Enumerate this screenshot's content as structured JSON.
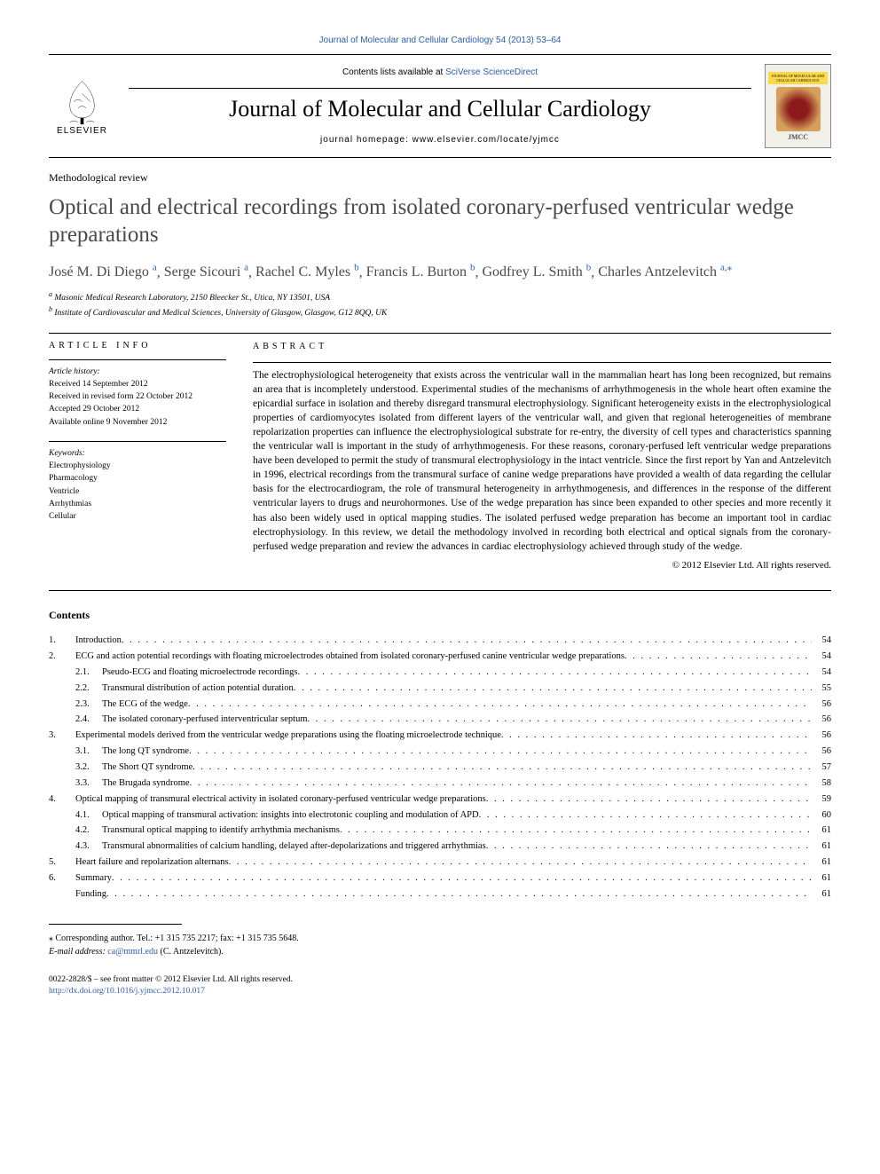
{
  "top_link": "Journal of Molecular and Cellular Cardiology 54 (2013) 53–64",
  "header": {
    "publisher": "ELSEVIER",
    "contents_prefix": "Contents lists available at ",
    "contents_link": "SciVerse ScienceDirect",
    "journal_name": "Journal of Molecular and Cellular Cardiology",
    "homepage_label": "journal homepage: ",
    "homepage_url": "www.elsevier.com/locate/yjmcc",
    "cover_top": "JOURNAL OF MOLECULAR AND CELLULAR CARDIOLOGY",
    "cover_tag": "JMCC"
  },
  "article_type": "Methodological review",
  "title": "Optical and electrical recordings from isolated coronary-perfused ventricular wedge preparations",
  "authors_html": [
    {
      "name": "José M. Di Diego",
      "aff": "a",
      "sep": ", "
    },
    {
      "name": "Serge Sicouri",
      "aff": "a",
      "sep": ", "
    },
    {
      "name": "Rachel C. Myles",
      "aff": "b",
      "sep": ", "
    },
    {
      "name": "Francis L. Burton",
      "aff": "b",
      "sep": ", "
    },
    {
      "name": "Godfrey L. Smith",
      "aff": "b",
      "sep": ", "
    },
    {
      "name": "Charles Antzelevitch",
      "aff": "a,",
      "sep": "",
      "corr": true
    }
  ],
  "affiliations": [
    {
      "key": "a",
      "text": "Masonic Medical Research Laboratory, 2150 Bleecker St., Utica, NY 13501, USA"
    },
    {
      "key": "b",
      "text": "Institute of Cardiovascular and Medical Sciences, University of Glasgow, Glasgow, G12 8QQ, UK"
    }
  ],
  "article_info": {
    "heading": "article info",
    "history_label": "Article history:",
    "history": [
      "Received 14 September 2012",
      "Received in revised form 22 October 2012",
      "Accepted 29 October 2012",
      "Available online 9 November 2012"
    ],
    "keywords_label": "Keywords:",
    "keywords": [
      "Electrophysiology",
      "Pharmacology",
      "Ventricle",
      "Arrhythmias",
      "Cellular"
    ]
  },
  "abstract": {
    "heading": "abstract",
    "text": "The electrophysiological heterogeneity that exists across the ventricular wall in the mammalian heart has long been recognized, but remains an area that is incompletely understood. Experimental studies of the mechanisms of arrhythmogenesis in the whole heart often examine the epicardial surface in isolation and thereby disregard transmural electrophysiology. Significant heterogeneity exists in the electrophysiological properties of cardiomyocytes isolated from different layers of the ventricular wall, and given that regional heterogeneities of membrane repolarization properties can influence the electrophysiological substrate for re-entry, the diversity of cell types and characteristics spanning the ventricular wall is important in the study of arrhythmogenesis. For these reasons, coronary-perfused left ventricular wedge preparations have been developed to permit the study of transmural electrophysiology in the intact ventricle. Since the first report by Yan and Antzelevitch in 1996, electrical recordings from the transmural surface of canine wedge preparations have provided a wealth of data regarding the cellular basis for the electrocardiogram, the role of transmural heterogeneity in arrhythmogenesis, and differences in the response of the different ventricular layers to drugs and neurohormones. Use of the wedge preparation has since been expanded to other species and more recently it has also been widely used in optical mapping studies. The isolated perfused wedge preparation has become an important tool in cardiac electrophysiology. In this review, we detail the methodology involved in recording both electrical and optical signals from the coronary-perfused wedge preparation and review the advances in cardiac electrophysiology achieved through study of the wedge.",
    "copyright": "© 2012 Elsevier Ltd. All rights reserved."
  },
  "contents_heading": "Contents",
  "toc": [
    {
      "num": "1.",
      "text": "Introduction",
      "page": "54",
      "sub": false
    },
    {
      "num": "2.",
      "text": "ECG and action potential recordings with floating microelectrodes obtained from isolated coronary-perfused canine ventricular wedge preparations",
      "page": "54",
      "sub": false
    },
    {
      "num": "2.1.",
      "text": "Pseudo-ECG and floating microelectrode recordings",
      "page": "54",
      "sub": true
    },
    {
      "num": "2.2.",
      "text": "Transmural distribution of action potential duration",
      "page": "55",
      "sub": true
    },
    {
      "num": "2.3.",
      "text": "The ECG of the wedge",
      "page": "56",
      "sub": true
    },
    {
      "num": "2.4.",
      "text": "The isolated coronary-perfused interventricular septum",
      "page": "56",
      "sub": true
    },
    {
      "num": "3.",
      "text": "Experimental models derived from the ventricular wedge preparations using the floating microelectrode technique",
      "page": "56",
      "sub": false
    },
    {
      "num": "3.1.",
      "text": "The long QT syndrome",
      "page": "56",
      "sub": true
    },
    {
      "num": "3.2.",
      "text": "The Short QT syndrome",
      "page": "57",
      "sub": true
    },
    {
      "num": "3.3.",
      "text": "The Brugada syndrome",
      "page": "58",
      "sub": true
    },
    {
      "num": "4.",
      "text": "Optical mapping of transmural electrical activity in isolated coronary-perfused ventricular wedge preparations",
      "page": "59",
      "sub": false
    },
    {
      "num": "4.1.",
      "text": "Optical mapping of transmural activation: insights into electrotonic coupling and modulation of APD",
      "page": "60",
      "sub": true
    },
    {
      "num": "4.2.",
      "text": "Transmural optical mapping to identify arrhythmia mechanisms",
      "page": "61",
      "sub": true
    },
    {
      "num": "4.3.",
      "text": "Transmural abnormalities of calcium handling, delayed after-depolarizations and triggered arrhythmias",
      "page": "61",
      "sub": true
    },
    {
      "num": "5.",
      "text": "Heart failure and repolarization alternans",
      "page": "61",
      "sub": false
    },
    {
      "num": "6.",
      "text": "Summary",
      "page": "61",
      "sub": false
    },
    {
      "num": "",
      "text": "Funding",
      "page": "61",
      "sub": false,
      "nonum": true
    }
  ],
  "footnote": {
    "corr_label": "⁎  Corresponding author. Tel.: +1 315 735 2217; fax: +1 315 735 5648.",
    "email_label": "E-mail address: ",
    "email": "ca@mmrl.edu",
    "email_suffix": " (C. Antzelevitch)."
  },
  "footer": {
    "line1": "0022-2828/$ – see front matter © 2012 Elsevier Ltd. All rights reserved.",
    "doi": "http://dx.doi.org/10.1016/j.yjmcc.2012.10.017"
  },
  "colors": {
    "link": "#2a5db0",
    "text": "#000000",
    "title_grey": "#4a4a4a"
  }
}
